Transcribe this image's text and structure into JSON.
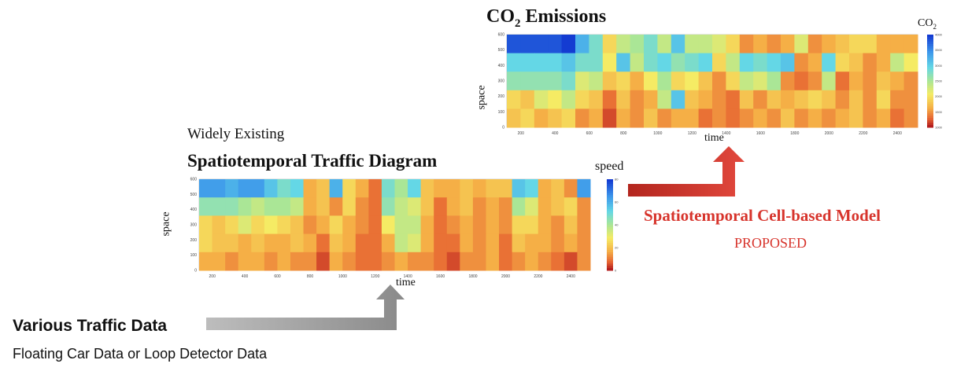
{
  "co2_panel": {
    "title_main": "CO",
    "title_sub": "2",
    "title_rest": " Emissions",
    "legend_main": "CO",
    "legend_sub": "2",
    "xlabel": "time",
    "ylabel": "space"
  },
  "traffic_panel": {
    "pretitle": "Widely Existing",
    "title": "Spatiotemporal Traffic Diagram",
    "legend_label": "speed",
    "xlabel": "time",
    "ylabel": "space"
  },
  "proposed": {
    "model": "Spatiotemporal Cell-based Model",
    "tag": "PROPOSED"
  },
  "input": {
    "title": "Various Traffic Data",
    "subtitle": "Floating Car Data or Loop Detector Data"
  },
  "colors": {
    "proposed_accent": "#d7342c",
    "input_arrow": "#8c8c8c"
  },
  "chart_data": [
    {
      "type": "heatmap",
      "name_ref": "CO2 Emissions",
      "x_ticks": [
        "200",
        "400",
        "600",
        "800",
        "1000",
        "1200",
        "1400",
        "1600",
        "1800",
        "2000",
        "2200",
        "2400"
      ],
      "y_ticks": [
        "0",
        "100",
        "200",
        "300",
        "400",
        "500",
        "600"
      ],
      "colorbar_ticks": [
        "1000",
        "1500",
        "2000",
        "2500",
        "3000",
        "3500",
        "4000"
      ],
      "colorscale": "jet_reversed (low=red, high=blue)",
      "grid": [
        [
          0.05,
          0.05,
          0.05,
          0.05,
          0.0,
          0.25,
          0.4,
          0.7,
          0.55,
          0.5,
          0.4,
          0.55,
          0.3,
          0.55,
          0.55,
          0.6,
          0.7,
          0.85,
          0.8,
          0.85,
          0.8,
          0.6,
          0.85,
          0.8,
          0.75,
          0.7,
          0.7,
          0.8,
          0.8,
          0.8
        ],
        [
          0.35,
          0.35,
          0.35,
          0.35,
          0.3,
          0.4,
          0.4,
          0.65,
          0.3,
          0.55,
          0.4,
          0.35,
          0.45,
          0.4,
          0.35,
          0.7,
          0.55,
          0.35,
          0.4,
          0.35,
          0.3,
          0.85,
          0.8,
          0.35,
          0.7,
          0.75,
          0.85,
          0.8,
          0.55,
          0.65
        ],
        [
          0.45,
          0.45,
          0.45,
          0.45,
          0.4,
          0.6,
          0.55,
          0.75,
          0.7,
          0.8,
          0.65,
          0.5,
          0.7,
          0.65,
          0.75,
          0.85,
          0.7,
          0.55,
          0.6,
          0.5,
          0.85,
          0.9,
          0.85,
          0.55,
          0.9,
          0.8,
          0.85,
          0.75,
          0.8,
          0.85
        ],
        [
          0.7,
          0.75,
          0.6,
          0.65,
          0.55,
          0.7,
          0.75,
          0.9,
          0.75,
          0.85,
          0.8,
          0.55,
          0.3,
          0.75,
          0.8,
          0.85,
          0.9,
          0.75,
          0.85,
          0.75,
          0.8,
          0.75,
          0.7,
          0.75,
          0.85,
          0.75,
          0.85,
          0.7,
          0.85,
          0.85
        ],
        [
          0.75,
          0.7,
          0.8,
          0.75,
          0.7,
          0.85,
          0.8,
          0.95,
          0.8,
          0.85,
          0.75,
          0.85,
          0.8,
          0.8,
          0.9,
          0.85,
          0.9,
          0.85,
          0.8,
          0.85,
          0.75,
          0.85,
          0.8,
          0.85,
          0.8,
          0.75,
          0.85,
          0.8,
          0.9,
          0.85
        ]
      ]
    },
    {
      "type": "heatmap",
      "name_ref": "Spatiotemporal Traffic Diagram",
      "x_ticks": [
        "200",
        "400",
        "600",
        "800",
        "1000",
        "1200",
        "1400",
        "1600",
        "1800",
        "2000",
        "2200",
        "2400"
      ],
      "y_ticks": [
        "0",
        "100",
        "200",
        "300",
        "400",
        "500",
        "600"
      ],
      "colorbar_ticks": [
        "0",
        "20",
        "40",
        "60",
        "80"
      ],
      "colorscale": "jet_reversed (low=red, high=blue)",
      "grid": [
        [
          0.2,
          0.2,
          0.25,
          0.2,
          0.2,
          0.3,
          0.4,
          0.35,
          0.8,
          0.75,
          0.25,
          0.7,
          0.8,
          0.9,
          0.4,
          0.5,
          0.35,
          0.75,
          0.8,
          0.8,
          0.75,
          0.8,
          0.75,
          0.75,
          0.3,
          0.35,
          0.8,
          0.75,
          0.85,
          0.2
        ],
        [
          0.45,
          0.45,
          0.45,
          0.5,
          0.55,
          0.5,
          0.5,
          0.55,
          0.8,
          0.75,
          0.85,
          0.7,
          0.85,
          0.9,
          0.45,
          0.55,
          0.6,
          0.75,
          0.9,
          0.8,
          0.75,
          0.85,
          0.8,
          0.85,
          0.5,
          0.6,
          0.8,
          0.75,
          0.7,
          0.85
        ],
        [
          0.7,
          0.75,
          0.7,
          0.6,
          0.7,
          0.65,
          0.7,
          0.75,
          0.85,
          0.8,
          0.7,
          0.8,
          0.85,
          0.9,
          0.65,
          0.55,
          0.55,
          0.8,
          0.9,
          0.85,
          0.8,
          0.85,
          0.8,
          0.85,
          0.7,
          0.7,
          0.8,
          0.85,
          0.75,
          0.85
        ],
        [
          0.7,
          0.75,
          0.75,
          0.8,
          0.75,
          0.8,
          0.8,
          0.75,
          0.8,
          0.9,
          0.75,
          0.8,
          0.9,
          0.9,
          0.8,
          0.55,
          0.6,
          0.8,
          0.9,
          0.9,
          0.8,
          0.85,
          0.8,
          0.9,
          0.75,
          0.8,
          0.8,
          0.85,
          0.8,
          0.85
        ],
        [
          0.8,
          0.8,
          0.85,
          0.8,
          0.8,
          0.85,
          0.8,
          0.85,
          0.85,
          0.95,
          0.8,
          0.85,
          0.9,
          0.9,
          0.85,
          0.8,
          0.85,
          0.85,
          0.9,
          0.95,
          0.85,
          0.85,
          0.8,
          0.9,
          0.85,
          0.8,
          0.85,
          0.9,
          0.95,
          0.85
        ]
      ]
    }
  ]
}
